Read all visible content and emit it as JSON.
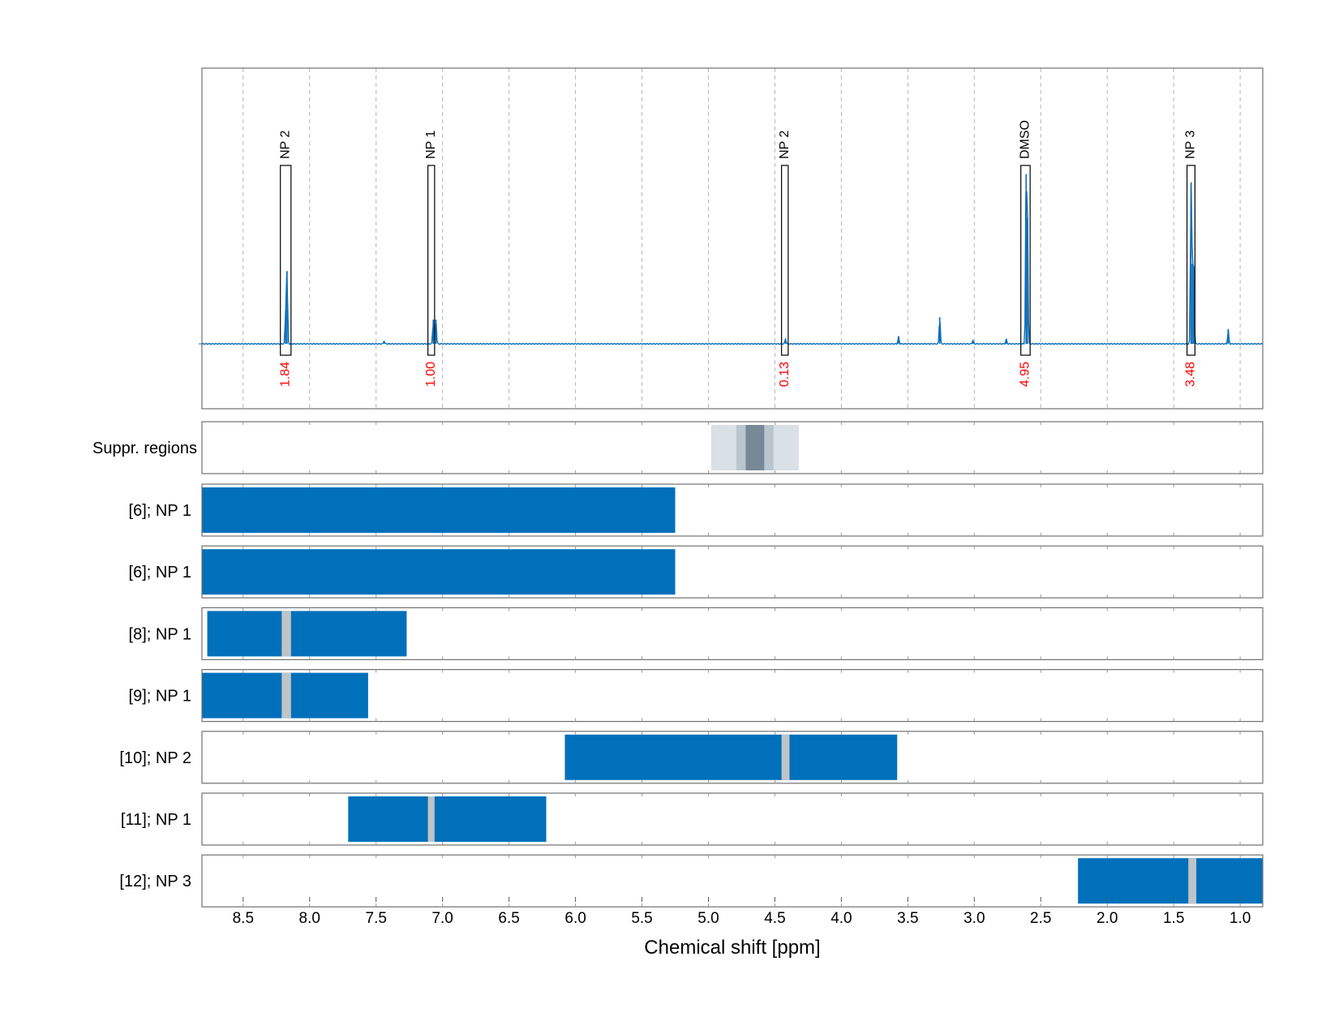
{
  "chart_data": {
    "type": "nmr-spectrum-with-region-tracks",
    "xlabel": "Chemical shift [ppm]",
    "xlim": [
      8.81,
      0.83
    ],
    "x_reversed": true,
    "grid": "vertical dashed",
    "x_ticks": [
      8.5,
      8.0,
      7.5,
      7.0,
      6.5,
      6.0,
      5.5,
      5.0,
      4.5,
      4.0,
      3.5,
      3.0,
      2.5,
      2.0,
      1.5,
      1.0
    ],
    "x_tick_labels": [
      "8.5",
      "8.0",
      "7.5",
      "7.0",
      "6.5",
      "6.0",
      "5.5",
      "5.0",
      "4.5",
      "4.0",
      "3.5",
      "3.0",
      "2.5",
      "2.0",
      "1.5",
      "1.0"
    ],
    "spectrum": {
      "color": "#0a6eb9",
      "peaks": [
        {
          "ppm": 8.17,
          "height": 0.3
        },
        {
          "ppm": 8.18,
          "height": 0.14
        },
        {
          "ppm": 7.44,
          "height": 0.012
        },
        {
          "ppm": 7.07,
          "height": 0.1
        },
        {
          "ppm": 7.05,
          "height": 0.1
        },
        {
          "ppm": 4.42,
          "height": 0.02
        },
        {
          "ppm": 3.57,
          "height": 0.03
        },
        {
          "ppm": 3.26,
          "height": 0.11
        },
        {
          "ppm": 3.01,
          "height": 0.015
        },
        {
          "ppm": 2.76,
          "height": 0.02
        },
        {
          "ppm": 2.61,
          "height": 0.7
        },
        {
          "ppm": 2.6,
          "height": 0.52
        },
        {
          "ppm": 1.37,
          "height": 0.66
        },
        {
          "ppm": 1.36,
          "height": 0.33
        },
        {
          "ppm": 1.35,
          "height": 0.32
        },
        {
          "ppm": 1.09,
          "height": 0.06
        }
      ]
    },
    "annotated_regions": [
      {
        "label": "NP 2",
        "ppm_from": 8.22,
        "ppm_to": 8.14,
        "integral": "1.84"
      },
      {
        "label": "NP 1",
        "ppm_from": 7.11,
        "ppm_to": 7.06,
        "integral": "1.00"
      },
      {
        "label": "NP 2",
        "ppm_from": 4.45,
        "ppm_to": 4.4,
        "integral": "0.13"
      },
      {
        "label": "DMSO",
        "ppm_from": 2.65,
        "ppm_to": 2.58,
        "integral": "4.95"
      },
      {
        "label": "NP 3",
        "ppm_from": 1.4,
        "ppm_to": 1.34,
        "integral": "3.48"
      }
    ],
    "integral_color": "#ff0000",
    "suppressed_regions": {
      "label": "Suppr. regions",
      "bands": [
        {
          "ppm_from": 4.98,
          "ppm_to": 4.32,
          "color": "#d9e0e6"
        },
        {
          "ppm_from": 4.79,
          "ppm_to": 4.51,
          "color": "#b9c6cf"
        },
        {
          "ppm_from": 4.72,
          "ppm_to": 4.58,
          "color": "#788896"
        }
      ]
    },
    "tracks": [
      {
        "label": "[6]; NP 1",
        "ranges": [
          [
            8.81,
            5.25
          ]
        ],
        "gaps": []
      },
      {
        "label": "[6]; NP 1",
        "ranges": [
          [
            8.81,
            5.25
          ]
        ],
        "gaps": []
      },
      {
        "label": "[8]; NP 1",
        "ranges": [
          [
            8.77,
            7.27
          ]
        ],
        "gaps": [
          [
            8.21,
            8.14
          ]
        ]
      },
      {
        "label": "[9]; NP 1",
        "ranges": [
          [
            8.81,
            7.56
          ]
        ],
        "gaps": [
          [
            8.21,
            8.14
          ]
        ]
      },
      {
        "label": "[10]; NP 2",
        "ranges": [
          [
            6.08,
            3.58
          ]
        ],
        "gaps": [
          [
            4.45,
            4.39
          ]
        ]
      },
      {
        "label": "[11]; NP 1",
        "ranges": [
          [
            7.71,
            6.22
          ]
        ],
        "gaps": [
          [
            7.11,
            7.06
          ]
        ]
      },
      {
        "label": "[12]; NP 3",
        "ranges": [
          [
            2.22,
            0.83
          ]
        ],
        "gaps": [
          [
            1.39,
            1.33
          ]
        ]
      }
    ],
    "track_color": "#0070bb",
    "gap_color": "#c0c4c8"
  }
}
